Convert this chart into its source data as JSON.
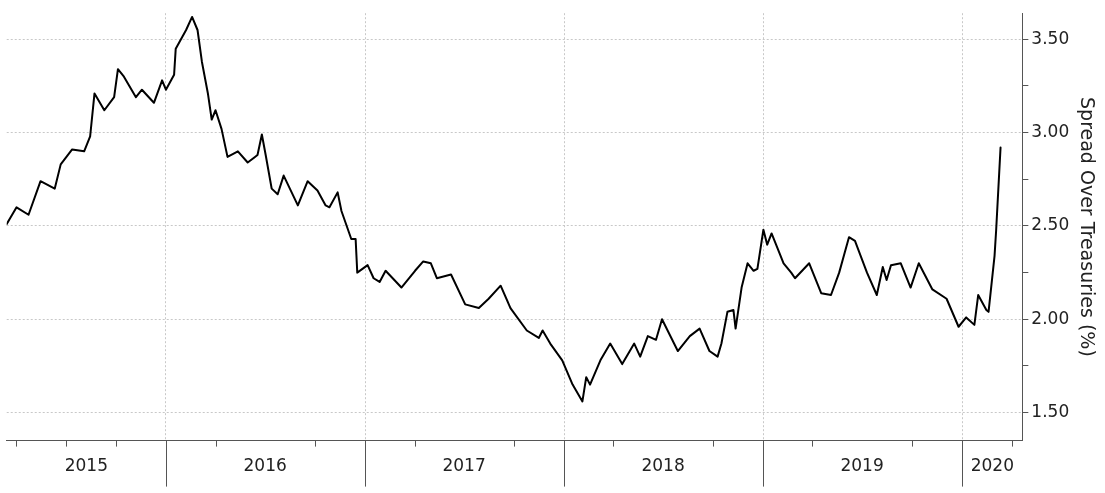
{
  "chart_data": {
    "type": "line",
    "ylabel": "Spread Over Treasuries (%)",
    "xlim": [
      "2015-03-15",
      "2020-04-20"
    ],
    "ylim": [
      1.35,
      3.64
    ],
    "xticks": [
      {
        "value": "2015-04-01",
        "label": null
      },
      {
        "value": "2015-07-01",
        "label": null
      },
      {
        "value": "2015-08-08",
        "label": "2015"
      },
      {
        "value": "2015-10-01",
        "label": null
      },
      {
        "value": "2016-01-01",
        "label": null
      },
      {
        "value": "2016-04-01",
        "label": null
      },
      {
        "value": "2016-07-01",
        "label": "2016"
      },
      {
        "value": "2016-10-01",
        "label": null
      },
      {
        "value": "2017-01-01",
        "label": null
      },
      {
        "value": "2017-04-01",
        "label": null
      },
      {
        "value": "2017-07-01",
        "label": "2017"
      },
      {
        "value": "2017-10-01",
        "label": null
      },
      {
        "value": "2018-01-01",
        "label": null
      },
      {
        "value": "2018-04-01",
        "label": null
      },
      {
        "value": "2018-07-01",
        "label": "2018"
      },
      {
        "value": "2018-10-01",
        "label": null
      },
      {
        "value": "2019-01-01",
        "label": null
      },
      {
        "value": "2019-04-01",
        "label": null
      },
      {
        "value": "2019-07-01",
        "label": "2019"
      },
      {
        "value": "2019-10-01",
        "label": null
      },
      {
        "value": "2020-01-01",
        "label": null
      },
      {
        "value": "2020-02-25",
        "label": "2020"
      },
      {
        "value": "2020-04-01",
        "label": null
      }
    ],
    "yticks": [
      {
        "value": 1.5,
        "label": "1.50"
      },
      {
        "value": 1.75,
        "label": null
      },
      {
        "value": 2,
        "label": "2.00"
      },
      {
        "value": 2.25,
        "label": null
      },
      {
        "value": 2.5,
        "label": "2.50"
      },
      {
        "value": 2.75,
        "label": null
      },
      {
        "value": 3,
        "label": "3.00"
      },
      {
        "value": 3.25,
        "label": null
      },
      {
        "value": 3.5,
        "label": "3.50"
      }
    ],
    "grid": true,
    "series": [
      {
        "color": "#000000",
        "x": [
          "2015-03-15",
          "2015-04-02",
          "2015-04-24",
          "2015-05-16",
          "2015-06-11",
          "2015-06-22",
          "2015-07-13",
          "2015-08-04",
          "2015-08-15",
          "2015-08-23",
          "2015-09-10",
          "2015-09-28",
          "2015-10-05",
          "2015-10-16",
          "2015-11-07",
          "2015-11-18",
          "2015-12-10",
          "2015-12-25",
          "2016-01-01",
          "2016-01-16",
          "2016-01-19",
          "2016-02-07",
          "2016-02-18",
          "2016-02-28",
          "2016-03-07",
          "2016-03-18",
          "2016-03-25",
          "2016-04-01",
          "2016-04-12",
          "2016-04-23",
          "2016-05-12",
          "2016-05-30",
          "2016-06-17",
          "2016-06-25",
          "2016-07-02",
          "2016-07-13",
          "2016-07-24",
          "2016-08-04",
          "2016-08-30",
          "2016-09-17",
          "2016-10-05",
          "2016-10-20",
          "2016-10-27",
          "2016-11-11",
          "2016-11-18",
          "2016-12-06",
          "2016-12-14",
          "2016-12-17",
          "2017-01-05",
          "2017-01-16",
          "2017-01-27",
          "2017-02-07",
          "2017-03-08",
          "2017-04-02",
          "2017-04-17",
          "2017-05-01",
          "2017-05-12",
          "2017-06-07",
          "2017-07-03",
          "2017-07-28",
          "2017-08-15",
          "2017-09-06",
          "2017-09-24",
          "2017-10-24",
          "2017-11-15",
          "2017-11-22",
          "2017-12-06",
          "2017-12-28",
          "2018-01-16",
          "2018-02-03",
          "2018-02-10",
          "2018-02-17",
          "2018-03-08",
          "2018-03-26",
          "2018-04-17",
          "2018-05-09",
          "2018-05-20",
          "2018-06-03",
          "2018-06-18",
          "2018-06-29",
          "2018-07-28",
          "2018-08-19",
          "2018-09-06",
          "2018-09-24",
          "2018-10-09",
          "2018-10-16",
          "2018-10-27",
          "2018-11-07",
          "2018-11-11",
          "2018-11-22",
          "2018-12-03",
          "2018-12-14",
          "2018-12-21",
          "2019-01-01",
          "2019-01-08",
          "2019-01-16",
          "2019-02-07",
          "2019-02-21",
          "2019-02-28",
          "2019-03-26",
          "2019-04-17",
          "2019-05-05",
          "2019-05-20",
          "2019-06-07",
          "2019-06-18",
          "2019-07-10",
          "2019-07-28",
          "2019-08-08",
          "2019-08-15",
          "2019-08-23",
          "2019-09-10",
          "2019-09-28",
          "2019-10-13",
          "2019-11-07",
          "2019-12-03",
          "2019-12-25",
          "2020-01-08",
          "2020-01-23",
          "2020-01-30",
          "2020-02-14",
          "2020-02-18",
          "2020-02-29",
          "2020-03-03",
          "2020-03-11"
        ],
        "values": [
          2.51,
          2.6,
          2.56,
          2.74,
          2.7,
          2.83,
          2.91,
          2.9,
          2.98,
          3.21,
          3.12,
          3.19,
          3.34,
          3.3,
          3.19,
          3.23,
          3.16,
          3.28,
          3.23,
          3.31,
          3.45,
          3.55,
          3.62,
          3.55,
          3.38,
          3.21,
          3.07,
          3.12,
          3.02,
          2.87,
          2.9,
          2.84,
          2.88,
          2.99,
          2.88,
          2.7,
          2.67,
          2.77,
          2.61,
          2.74,
          2.69,
          2.61,
          2.6,
          2.68,
          2.58,
          2.43,
          2.43,
          2.25,
          2.29,
          2.22,
          2.2,
          2.26,
          2.17,
          2.26,
          2.31,
          2.3,
          2.22,
          2.24,
          2.08,
          2.06,
          2.11,
          2.18,
          2.06,
          1.94,
          1.9,
          1.94,
          1.87,
          1.78,
          1.65,
          1.56,
          1.69,
          1.65,
          1.78,
          1.87,
          1.76,
          1.87,
          1.8,
          1.91,
          1.89,
          2.0,
          1.83,
          1.91,
          1.95,
          1.83,
          1.8,
          1.87,
          2.04,
          2.05,
          1.95,
          2.17,
          2.3,
          2.26,
          2.27,
          2.48,
          2.4,
          2.46,
          2.3,
          2.25,
          2.22,
          2.3,
          2.14,
          2.13,
          2.25,
          2.44,
          2.42,
          2.25,
          2.13,
          2.28,
          2.21,
          2.29,
          2.3,
          2.17,
          2.3,
          2.16,
          2.11,
          1.96,
          2.01,
          1.97,
          2.13,
          2.05,
          2.04,
          2.34,
          2.48,
          2.92
        ]
      }
    ]
  }
}
